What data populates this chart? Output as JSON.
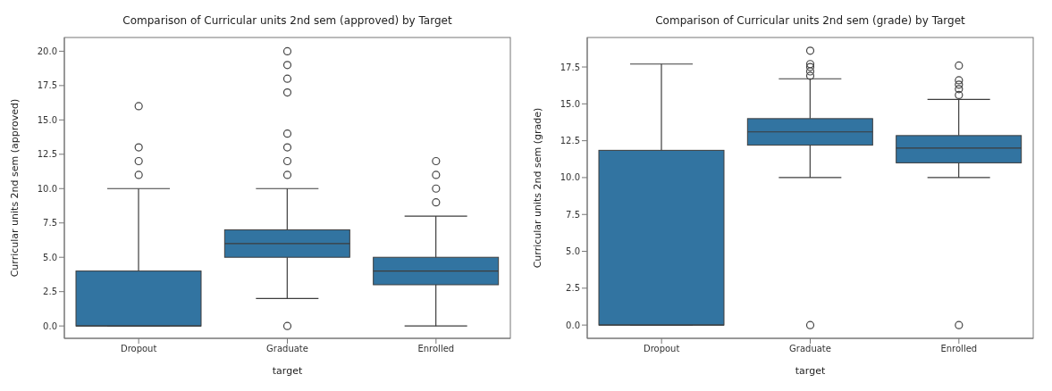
{
  "chart_data": [
    {
      "type": "box",
      "title": "Comparison of Curricular units 2nd sem (approved) by Target",
      "xlabel": "target",
      "ylabel": "Curricular units 2nd sem (approved)",
      "color": "#3274a1",
      "categories": [
        "Dropout",
        "Graduate",
        "Enrolled"
      ],
      "boxes": [
        {
          "low": 0,
          "q1": 0,
          "median": 0,
          "q3": 4,
          "high": 10,
          "outliers": [
            11,
            12,
            13,
            16
          ]
        },
        {
          "low": 2,
          "q1": 5,
          "median": 6,
          "q3": 7,
          "high": 10,
          "outliers": [
            0,
            11,
            12,
            13,
            14,
            17,
            18,
            19,
            20
          ]
        },
        {
          "low": 0,
          "q1": 3,
          "median": 4,
          "q3": 5,
          "high": 8,
          "outliers": [
            9,
            10,
            11,
            12
          ]
        }
      ],
      "ylim": [
        -0.9,
        21
      ],
      "yticks": [
        {
          "value": 0,
          "label": "0.0"
        },
        {
          "value": 2.5,
          "label": "2.5"
        },
        {
          "value": 5,
          "label": "5.0"
        },
        {
          "value": 7.5,
          "label": "7.5"
        },
        {
          "value": 10,
          "label": "10.0"
        },
        {
          "value": 12.5,
          "label": "12.5"
        },
        {
          "value": 15,
          "label": "15.0"
        },
        {
          "value": 17.5,
          "label": "17.5"
        },
        {
          "value": 20,
          "label": "20.0"
        }
      ]
    },
    {
      "type": "box",
      "title": "Comparison of Curricular units 2nd sem (grade) by Target",
      "xlabel": "target",
      "ylabel": "Curricular units 2nd sem (grade)",
      "color": "#3274a1",
      "categories": [
        "Dropout",
        "Graduate",
        "Enrolled"
      ],
      "boxes": [
        {
          "low": 0,
          "q1": 0,
          "median": 0,
          "q3": 11.85,
          "high": 17.7
        },
        {
          "low": 10,
          "q1": 12.2,
          "median": 13.1,
          "q3": 14.0,
          "high": 16.7,
          "outliers": [
            0,
            16.9,
            17.2,
            17.5,
            17.7,
            18.6
          ]
        },
        {
          "low": 10,
          "q1": 11.0,
          "median": 12.0,
          "q3": 12.85,
          "high": 15.3,
          "outliers": [
            0,
            15.6,
            16.0,
            16.3,
            16.6,
            17.6
          ]
        }
      ],
      "ylim": [
        -0.9,
        19.5
      ],
      "yticks": [
        {
          "value": 0,
          "label": "0.0"
        },
        {
          "value": 2.5,
          "label": "2.5"
        },
        {
          "value": 5,
          "label": "5.0"
        },
        {
          "value": 7.5,
          "label": "7.5"
        },
        {
          "value": 10,
          "label": "10.0"
        },
        {
          "value": 12.5,
          "label": "12.5"
        },
        {
          "value": 15,
          "label": "15.0"
        },
        {
          "value": 17.5,
          "label": "17.5"
        }
      ]
    }
  ]
}
